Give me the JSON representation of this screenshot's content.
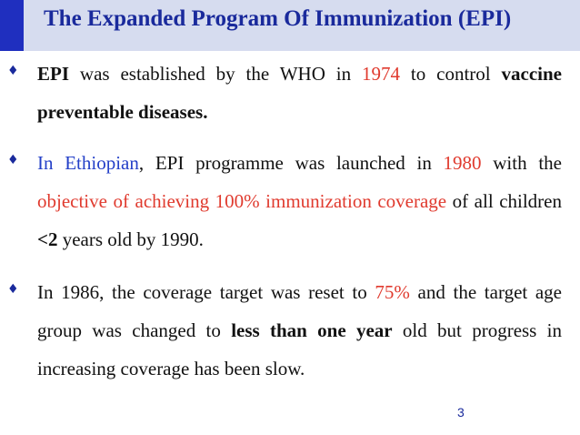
{
  "slide": {
    "title": "The Expanded Program Of Immunization (EPI)",
    "page_number": "3",
    "bullet_glyph": "♦",
    "colors": {
      "title": "#1a2a9c",
      "accent_bar": "#1f2fbf",
      "title_band": "#d6dcef",
      "highlight_red": "#e03a2e",
      "highlight_blue": "#2440c8",
      "body_text": "#111111"
    }
  },
  "bullets": [
    {
      "segments": {
        "s1": "EPI",
        "s2": " was established by the WHO in ",
        "s3": "1974",
        "s4": " to control ",
        "s5": "vaccine preventable diseases."
      }
    },
    {
      "segments": {
        "s1": "In Ethiopian",
        "s2": ", EPI programme was launched in ",
        "s3": "1980",
        "s4": " with the ",
        "s5": "objective of achieving 100% immunization coverage",
        "s6": " of all children ",
        "s7": "<2",
        "s8": " years old by 1990."
      }
    },
    {
      "segments": {
        "s1": "In 1986, the coverage target was reset to ",
        "s2": "75%",
        "s3": " and the target age group was changed to ",
        "s4": "less than one year",
        "s5": " old but progress in increasing coverage has been slow."
      }
    }
  ]
}
